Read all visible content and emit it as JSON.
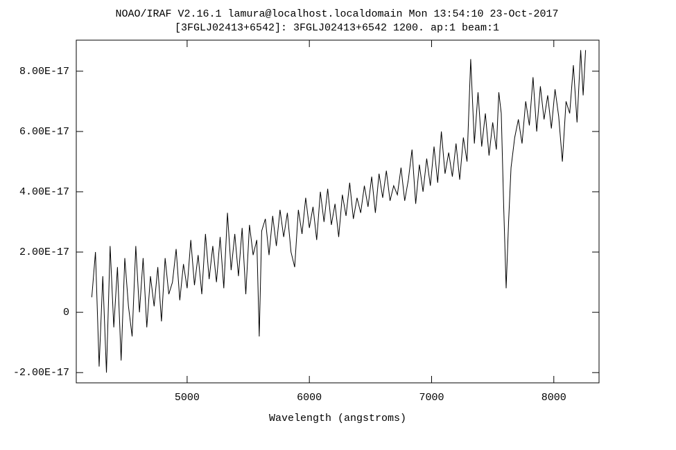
{
  "chart_data": {
    "type": "line",
    "title": "NOAO/IRAF V2.16.1 lamura@localhost.localdomain Mon 13:54:10 23-Oct-2017",
    "subtitle": "[3FGLJ02413+6542]: 3FGLJ02413+6542 1200. ap:1 beam:1",
    "x_label": "Wavelength (angstroms)",
    "xlim": [
      4093,
      8370
    ],
    "ylim": [
      -2.34e-17,
      9.03e-17
    ],
    "xticks": [
      5000,
      6000,
      7000,
      8000
    ],
    "yticks": [
      {
        "value": -2e-17,
        "label": "-2.00E-17"
      },
      0,
      {
        "value": 2e-17,
        "label": "2.00E-17"
      },
      {
        "value": 4e-17,
        "label": "4.00E-17"
      },
      {
        "value": 6e-17,
        "label": "6.00E-17"
      },
      {
        "value": 8e-17,
        "label": "8.00E-17"
      }
    ],
    "color": "#000000",
    "x": [
      4220,
      4250,
      4280,
      4310,
      4340,
      4370,
      4400,
      4430,
      4460,
      4490,
      4520,
      4550,
      4580,
      4610,
      4640,
      4670,
      4700,
      4730,
      4760,
      4790,
      4820,
      4850,
      4880,
      4910,
      4940,
      4970,
      5000,
      5030,
      5060,
      5090,
      5120,
      5150,
      5180,
      5210,
      5240,
      5270,
      5300,
      5330,
      5360,
      5390,
      5420,
      5450,
      5480,
      5510,
      5540,
      5570,
      5590,
      5610,
      5640,
      5670,
      5700,
      5730,
      5760,
      5790,
      5820,
      5850,
      5880,
      5910,
      5940,
      5970,
      6000,
      6030,
      6060,
      6090,
      6120,
      6150,
      6180,
      6210,
      6240,
      6270,
      6300,
      6330,
      6360,
      6390,
      6420,
      6450,
      6480,
      6510,
      6540,
      6570,
      6600,
      6630,
      6660,
      6690,
      6720,
      6750,
      6780,
      6810,
      6840,
      6870,
      6900,
      6930,
      6960,
      6990,
      7020,
      7050,
      7080,
      7110,
      7140,
      7170,
      7200,
      7230,
      7260,
      7290,
      7320,
      7350,
      7380,
      7410,
      7440,
      7470,
      7500,
      7530,
      7550,
      7570,
      7590,
      7610,
      7630,
      7650,
      7680,
      7710,
      7740,
      7770,
      7800,
      7830,
      7860,
      7890,
      7920,
      7950,
      7980,
      8010,
      8040,
      8070,
      8100,
      8130,
      8160,
      8190,
      8220,
      8240,
      8260
    ],
    "values": [
      5e-18,
      2e-17,
      -1.8e-17,
      1.2e-17,
      -2e-17,
      2.2e-17,
      -5e-18,
      1.5e-17,
      -1.6e-17,
      1.8e-17,
      2e-18,
      -8e-18,
      2.2e-17,
      0.0,
      1.8e-17,
      -5e-18,
      1.2e-17,
      2e-18,
      1.5e-17,
      -3e-18,
      1.8e-17,
      6e-18,
      1e-17,
      2.1e-17,
      4e-18,
      1.6e-17,
      8e-18,
      2.4e-17,
      9e-18,
      1.9e-17,
      6e-18,
      2.6e-17,
      1.1e-17,
      2.2e-17,
      1e-17,
      2.5e-17,
      8e-18,
      3.3e-17,
      1.4e-17,
      2.6e-17,
      1.2e-17,
      2.8e-17,
      6e-18,
      2.9e-17,
      1.9e-17,
      2.4e-17,
      -8e-18,
      2.7e-17,
      3.1e-17,
      1.9e-17,
      3.2e-17,
      2.2e-17,
      3.4e-17,
      2.5e-17,
      3.3e-17,
      2e-17,
      1.5e-17,
      3.4e-17,
      2.6e-17,
      3.8e-17,
      2.8e-17,
      3.5e-17,
      2.4e-17,
      4e-17,
      3e-17,
      4.1e-17,
      2.9e-17,
      3.6e-17,
      2.5e-17,
      3.9e-17,
      3.2e-17,
      4.3e-17,
      3.1e-17,
      3.8e-17,
      3.3e-17,
      4.2e-17,
      3.5e-17,
      4.5e-17,
      3.3e-17,
      4.6e-17,
      3.8e-17,
      4.7e-17,
      3.7e-17,
      4.2e-17,
      3.9e-17,
      4.8e-17,
      3.7e-17,
      4.4e-17,
      5.4e-17,
      3.6e-17,
      4.9e-17,
      4e-17,
      5.1e-17,
      4.2e-17,
      5.5e-17,
      4.3e-17,
      6e-17,
      4.6e-17,
      5.3e-17,
      4.5e-17,
      5.6e-17,
      4.4e-17,
      5.8e-17,
      5e-17,
      8.4e-17,
      5.6e-17,
      7.3e-17,
      5.5e-17,
      6.6e-17,
      5.2e-17,
      6.3e-17,
      5.4e-17,
      7.3e-17,
      6.6e-17,
      3.5e-17,
      8e-18,
      3e-17,
      4.8e-17,
      5.8e-17,
      6.4e-17,
      5.6e-17,
      7e-17,
      6.2e-17,
      7.8e-17,
      6e-17,
      7.5e-17,
      6.4e-17,
      7.2e-17,
      6.1e-17,
      7.4e-17,
      6.5e-17,
      5e-17,
      7e-17,
      6.6e-17,
      8.2e-17,
      6.3e-17,
      8.7e-17,
      7.2e-17,
      8.7e-17
    ]
  }
}
